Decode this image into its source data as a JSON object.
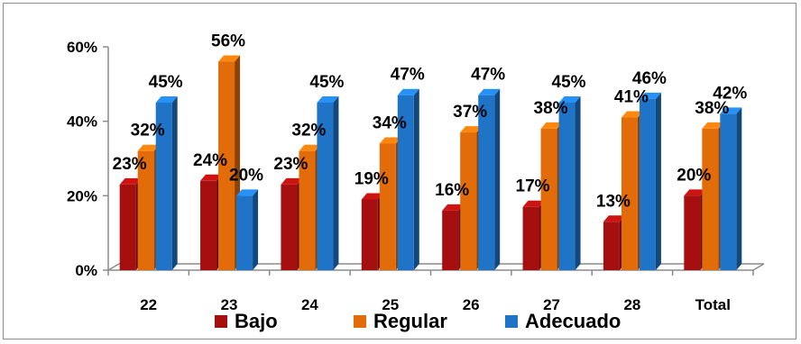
{
  "chart_data": {
    "type": "bar",
    "title": "",
    "xlabel": "",
    "ylabel": "",
    "categories": [
      "22",
      "23",
      "24",
      "25",
      "26",
      "27",
      "28",
      "Total"
    ],
    "series": [
      {
        "name": "Bajo",
        "color": "#a50f0f",
        "values": [
          23,
          24,
          23,
          19,
          16,
          17,
          13,
          20
        ]
      },
      {
        "name": "Regular",
        "color": "#e36c0a",
        "values": [
          32,
          56,
          32,
          34,
          37,
          38,
          41,
          38
        ]
      },
      {
        "name": "Adecuado",
        "color": "#1f74c8",
        "values": [
          45,
          20,
          45,
          47,
          47,
          45,
          46,
          42
        ]
      }
    ],
    "ylim": [
      0,
      60
    ],
    "yticks": [
      0,
      20,
      40,
      60
    ],
    "ytick_labels": [
      "0%",
      "20%",
      "40%",
      "60%"
    ],
    "value_suffix": "%",
    "grid": false,
    "legend": "bottom",
    "style": "3d-clustered-column"
  }
}
